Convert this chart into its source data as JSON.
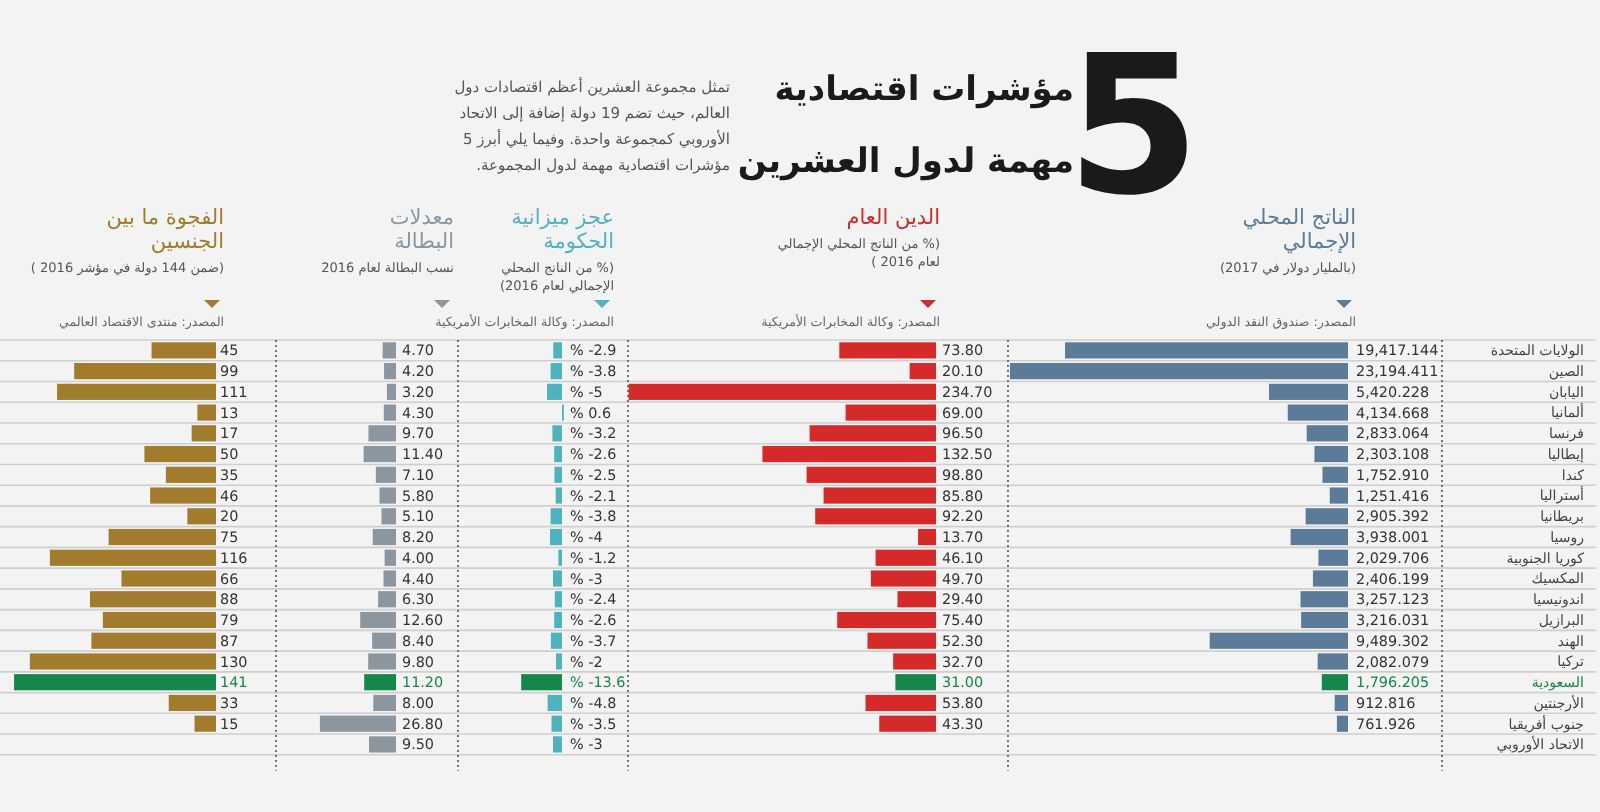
{
  "chart_data": [
    {
      "type": "other",
      "title": "5 مؤشرات اقتصادية مهمة لدول العشرين",
      "annotations": [
        "تمثل مجموعة العشرين أعظم اقتصادات دول العالم، حيث تضم 19 دولة إضافة إلى الاتحاد الأوروبي كمجموعة واحدة. وفيما يلي أبرز 5 مؤشرات اقتصادية مهمة لدول المجموعة."
      ]
    },
    {
      "type": "bar",
      "orientation": "horizontal",
      "title": "الناتج المحلي الإجمالي",
      "subtitle": "(بالمليار دولار في 2017)",
      "annotations": [
        "المصدر: صندوق النقد الدولي"
      ],
      "categories": [
        "الولايات المتحدة",
        "الصين",
        "اليابان",
        "ألمانيا",
        "فرنسا",
        "إيطاليا",
        "كندا",
        "أستراليا",
        "بريطانيا",
        "روسيا",
        "كوريا الجنوبية",
        "المكسيك",
        "اندونيسيا",
        "البرازيل",
        "الهند",
        "تركيا",
        "السعودية",
        "الأرجنتين",
        "جنوب أفريقيا",
        "الاتحاد الأوروبي"
      ],
      "values": [
        19417.144,
        23194.411,
        5420.228,
        4134.668,
        2833.064,
        2303.108,
        1752.91,
        1251.416,
        2905.392,
        3938.001,
        2029.706,
        2406.199,
        3257.123,
        3216.031,
        9489.302,
        2082.079,
        1796.205,
        912.816,
        761.926,
        null
      ],
      "value_labels": [
        "19,417.144",
        "23,194.411",
        "5,420.228",
        "4,134.668",
        "2,833.064",
        "2,303.108",
        "1,752.910",
        "1,251.416",
        "2,905.392",
        "3,938.001",
        "2,029.706",
        "2,406.199",
        "3,257.123",
        "3,216.031",
        "9,489.302",
        "2,082.079",
        "1,796.205",
        "912.816",
        "761.926",
        null
      ],
      "color": "#5b7b99",
      "colors": [
        "#5b7b99",
        "#5b7b99",
        "#5b7b99",
        "#5b7b99",
        "#5b7b99",
        "#5b7b99",
        "#5b7b99",
        "#5b7b99",
        "#5b7b99",
        "#5b7b99",
        "#5b7b99",
        "#5b7b99",
        "#5b7b99",
        "#5b7b99",
        "#5b7b99",
        "#5b7b99",
        "#15874a",
        "#5b7b99",
        "#5b7b99",
        null
      ],
      "grid": "y",
      "tick_labels": "y"
    },
    {
      "type": "bar",
      "orientation": "horizontal",
      "title": "الدين العام",
      "subtitle": "(% من الناتج المحلي الإجمالي لعام 2016 )",
      "annotations": [
        "المصدر: وكالة المخابرات الأمريكية"
      ],
      "categories": [
        null,
        null,
        null,
        null,
        null,
        null,
        null,
        null,
        null,
        null,
        null,
        null,
        null,
        null,
        null,
        null,
        null,
        null,
        null,
        null
      ],
      "values": [
        73.8,
        20.1,
        234.7,
        69.0,
        96.5,
        132.5,
        98.8,
        85.8,
        92.2,
        13.7,
        46.1,
        49.7,
        29.4,
        75.4,
        52.3,
        32.7,
        31.0,
        53.8,
        43.3,
        null
      ],
      "value_labels": [
        "73.80",
        "20.10",
        "234.70",
        "69.00",
        "96.50",
        "132.50",
        "98.80",
        "85.80",
        "92.20",
        "13.70",
        "46.10",
        "49.70",
        "29.40",
        "75.40",
        "52.30",
        "32.70",
        "31.00",
        "53.80",
        "43.30",
        null
      ],
      "color": "#d42a2a",
      "colors": [
        "#d42a2a",
        "#d42a2a",
        "#d42a2a",
        "#d42a2a",
        "#d42a2a",
        "#d42a2a",
        "#d42a2a",
        "#d42a2a",
        "#d42a2a",
        "#d42a2a",
        "#d42a2a",
        "#d42a2a",
        "#d42a2a",
        "#d42a2a",
        "#d42a2a",
        "#d42a2a",
        "#15874a",
        "#d42a2a",
        "#d42a2a",
        null
      ],
      "grid": "y",
      "tick_labels": false
    },
    {
      "type": "bar",
      "orientation": "horizontal",
      "title": "عجز ميزانية الحكومة",
      "subtitle": "(% من الناتج المحلي الإجمالي لعام 2016)",
      "annotations": [
        "المصدر: وكالة المخابرات الأمريكية"
      ],
      "categories": [
        null,
        null,
        null,
        null,
        null,
        null,
        null,
        null,
        null,
        null,
        null,
        null,
        null,
        null,
        null,
        null,
        null,
        null,
        null,
        null
      ],
      "values": [
        -2.9,
        -3.8,
        -5,
        0.6,
        -3.2,
        -2.6,
        -2.5,
        -2.1,
        -3.8,
        -4,
        -1.2,
        -3,
        -2.4,
        -2.6,
        -3.7,
        -2,
        -13.6,
        -4.8,
        -3.5,
        -3
      ],
      "value_labels": [
        "% -2.9",
        "% -3.8",
        "% -5",
        "% 0.6",
        "% -3.2",
        "% -2.6",
        "% -2.5",
        "% -2.1",
        "% -3.8",
        "% -4",
        "% -1.2",
        "% -3",
        "% -2.4",
        "% -2.6",
        "% -3.7",
        "% -2",
        "% -13.6",
        "% -4.8",
        "% -3.5",
        "% -3"
      ],
      "color": "#4fb3bf",
      "colors": [
        "#4fb3bf",
        "#4fb3bf",
        "#4fb3bf",
        "#4fb3bf",
        "#4fb3bf",
        "#4fb3bf",
        "#4fb3bf",
        "#4fb3bf",
        "#4fb3bf",
        "#4fb3bf",
        "#4fb3bf",
        "#4fb3bf",
        "#4fb3bf",
        "#4fb3bf",
        "#4fb3bf",
        "#4fb3bf",
        "#15874a",
        "#4fb3bf",
        "#4fb3bf",
        "#4fb3bf"
      ],
      "grid": "y",
      "tick_labels": false
    },
    {
      "type": "bar",
      "orientation": "horizontal",
      "title": "معدلات البطالة",
      "subtitle": "نسب البطالة لعام 2016",
      "categories": [
        null,
        null,
        null,
        null,
        null,
        null,
        null,
        null,
        null,
        null,
        null,
        null,
        null,
        null,
        null,
        null,
        null,
        null,
        null,
        null
      ],
      "values": [
        4.7,
        4.2,
        3.2,
        4.3,
        9.7,
        11.4,
        7.1,
        5.8,
        5.1,
        8.2,
        4.0,
        4.4,
        6.3,
        12.6,
        8.4,
        9.8,
        11.2,
        8.0,
        26.8,
        9.5
      ],
      "value_labels": [
        "4.70",
        "4.20",
        "3.20",
        "4.30",
        "9.70",
        "11.40",
        "7.10",
        "5.80",
        "5.10",
        "8.20",
        "4.00",
        "4.40",
        "6.30",
        "12.60",
        "8.40",
        "9.80",
        "11.20",
        "8.00",
        "26.80",
        "9.50"
      ],
      "color": "#8c969e",
      "colors": [
        "#8c969e",
        "#8c969e",
        "#8c969e",
        "#8c969e",
        "#8c969e",
        "#8c969e",
        "#8c969e",
        "#8c969e",
        "#8c969e",
        "#8c969e",
        "#8c969e",
        "#8c969e",
        "#8c969e",
        "#8c969e",
        "#8c969e",
        "#8c969e",
        "#15874a",
        "#8c969e",
        "#8c969e",
        "#8c969e"
      ],
      "grid": "y",
      "tick_labels": false
    },
    {
      "type": "bar",
      "orientation": "horizontal",
      "title": "الفجوة ما بين الجنسين",
      "subtitle": "(ضمن 144 دولة في مؤشر 2016 )",
      "annotations": [
        "المصدر: منتدى الاقتصاد العالمي"
      ],
      "categories": [
        null,
        null,
        null,
        null,
        null,
        null,
        null,
        null,
        null,
        null,
        null,
        null,
        null,
        null,
        null,
        null,
        null,
        null,
        null,
        null
      ],
      "values": [
        45,
        99,
        111,
        13,
        17,
        50,
        35,
        46,
        20,
        75,
        116,
        66,
        88,
        79,
        87,
        130,
        141,
        33,
        15,
        null
      ],
      "data_labels": true,
      "color": "#a07c2c",
      "colors": [
        "#a07c2c",
        "#a07c2c",
        "#a07c2c",
        "#a07c2c",
        "#a07c2c",
        "#a07c2c",
        "#a07c2c",
        "#a07c2c",
        "#a07c2c",
        "#a07c2c",
        "#a07c2c",
        "#a07c2c",
        "#a07c2c",
        "#a07c2c",
        "#a07c2c",
        "#a07c2c",
        "#15874a",
        "#a07c2c",
        "#a07c2c",
        null
      ],
      "grid": "y",
      "tick_labels": false
    }
  ]
}
